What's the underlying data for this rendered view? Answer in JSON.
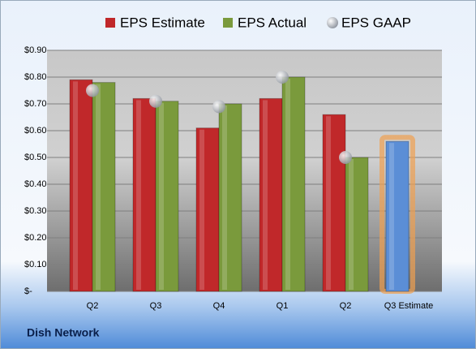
{
  "chart_data": {
    "type": "bar",
    "categories": [
      "Q2",
      "Q3",
      "Q4",
      "Q1",
      "Q2",
      "Q3 Estimate"
    ],
    "series": [
      {
        "name": "EPS Estimate",
        "color": "#c0282a",
        "colors": [
          "#c0282a",
          "#c0282a",
          "#c0282a",
          "#c0282a",
          "#c0282a",
          "#5b8ed6"
        ],
        "values": [
          0.79,
          0.72,
          0.61,
          0.72,
          0.66,
          0.56
        ]
      },
      {
        "name": "EPS Actual",
        "color": "#7a9a3c",
        "values": [
          0.78,
          0.71,
          0.7,
          0.8,
          0.5,
          null
        ]
      },
      {
        "name": "EPS GAAP",
        "color": "#b8bcc4",
        "type": "scatter",
        "values": [
          0.75,
          0.71,
          0.69,
          0.8,
          0.5,
          null
        ]
      }
    ],
    "ylim": [
      0,
      0.9
    ],
    "yticks": [
      {
        "value": 0,
        "label": "$-"
      },
      {
        "value": 0.1,
        "label": "$0.10"
      },
      {
        "value": 0.2,
        "label": "$0.20"
      },
      {
        "value": 0.3,
        "label": "$0.30"
      },
      {
        "value": 0.4,
        "label": "$0.40"
      },
      {
        "value": 0.5,
        "label": "$0.50"
      },
      {
        "value": 0.6,
        "label": "$0.60"
      },
      {
        "value": 0.7,
        "label": "$0.70"
      },
      {
        "value": 0.8,
        "label": "$0.80"
      },
      {
        "value": 0.9,
        "label": "$0.90"
      }
    ],
    "grid": true,
    "legend": "top",
    "footer": "Dish Network"
  }
}
